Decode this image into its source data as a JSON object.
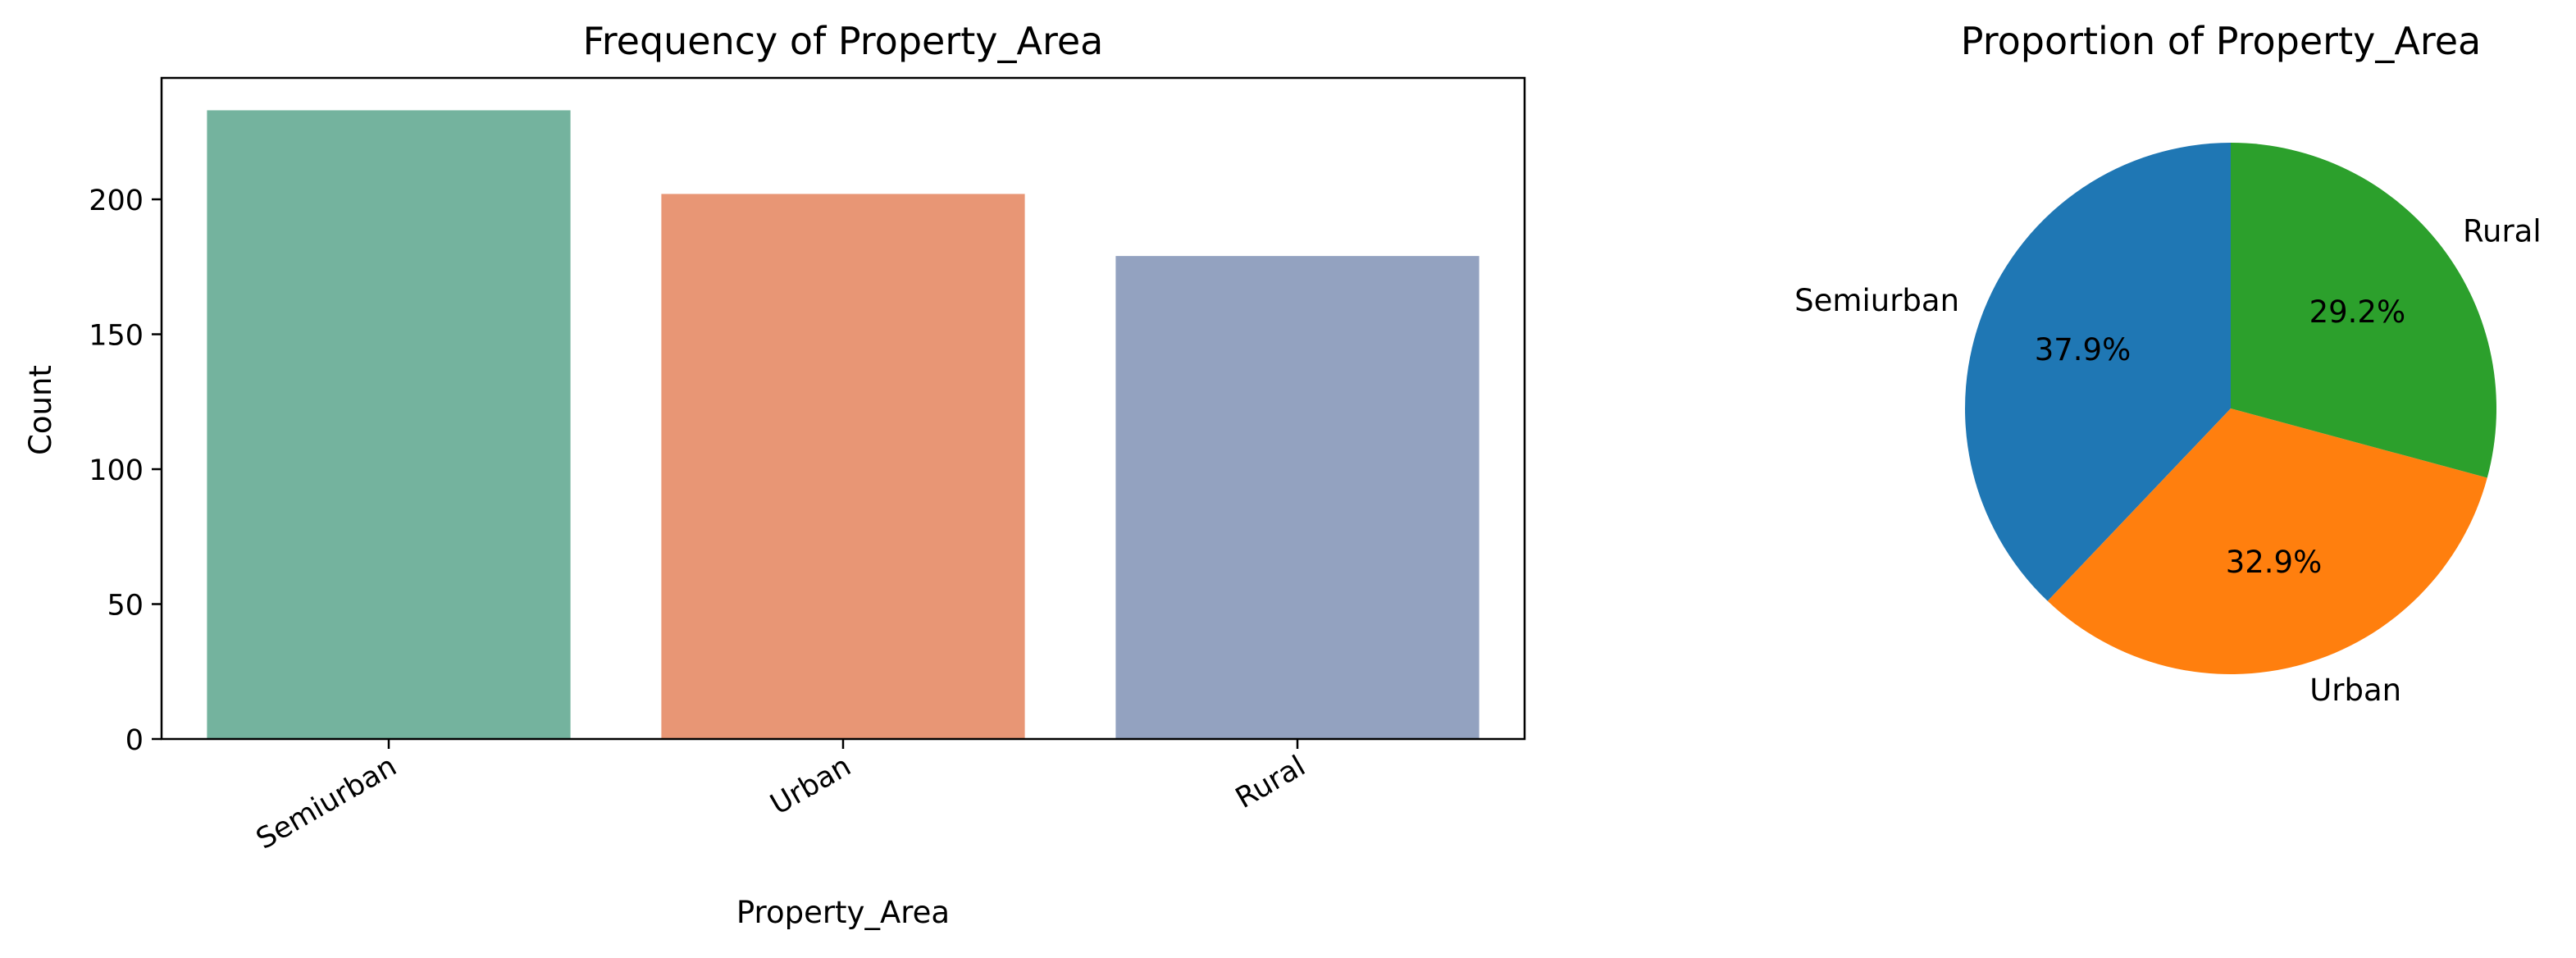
{
  "chart_data": [
    {
      "type": "bar",
      "title": "Frequency of Property_Area",
      "xlabel": "Property_Area",
      "ylabel": "Count",
      "categories": [
        "Semiurban",
        "Urban",
        "Rural"
      ],
      "values": [
        233,
        202,
        179
      ],
      "colors": [
        "#74b39e",
        "#e89675",
        "#93a2c0"
      ],
      "ylim": [
        0,
        245
      ],
      "yticks": [
        0,
        50,
        100,
        150,
        200
      ],
      "grid": false,
      "legend": "none"
    },
    {
      "type": "pie",
      "title": "Proportion of Property_Area",
      "labels": [
        "Semiurban",
        "Urban",
        "Rural"
      ],
      "values": [
        37.9,
        32.9,
        29.2
      ],
      "value_labels": [
        "37.9%",
        "32.9%",
        "29.2%"
      ],
      "colors": [
        "#1f77b4",
        "#ff7f0e",
        "#2ca02c"
      ],
      "start_angle": 90,
      "direction": "counterclockwise",
      "legend": "none"
    }
  ]
}
